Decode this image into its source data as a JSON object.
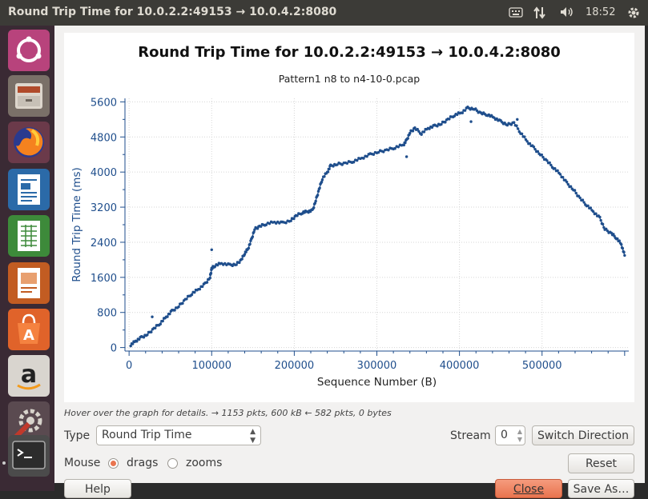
{
  "window": {
    "title": "Round Trip Time for 10.0.2.2:49153 → 10.0.4.2:8080"
  },
  "topbar": {
    "clock": "18:52",
    "icons": [
      "keyboard-icon",
      "network-icon",
      "volume-icon",
      "system-gear-icon"
    ]
  },
  "launcher": {
    "items": [
      "ubuntu-icon",
      "files-icon",
      "firefox-icon",
      "writer-icon",
      "calc-icon",
      "impress-icon",
      "software-icon",
      "amazon-icon",
      "settings-icon",
      "terminal-icon"
    ]
  },
  "hint": "Hover over the graph for details. → 1153 pkts, 600 kB ← 582 pkts, 0 bytes",
  "controls": {
    "type_label": "Type",
    "type_value": "Round Trip Time",
    "stream_label": "Stream",
    "stream_value": "0",
    "switch_direction": "Switch Direction",
    "mouse_label": "Mouse",
    "mouse_drags": "drags",
    "mouse_zooms": "zooms",
    "mouse_selected": "drags",
    "reset": "Reset",
    "help": "Help",
    "close": "Close",
    "save_as": "Save As…"
  },
  "chart_data": {
    "type": "scatter",
    "title": "Round Trip Time for 10.0.2.2:49153 → 10.0.4.2:8080",
    "subtitle": "Pattern1 n8 to n4-10-0.pcap",
    "xlabel": "Sequence Number (B)",
    "ylabel": "Round Trip Time (ms)",
    "xlim": [
      -5000,
      605000
    ],
    "ylim": [
      -80,
      5680
    ],
    "x_ticks": [
      0,
      100000,
      200000,
      300000,
      400000,
      500000
    ],
    "y_ticks": [
      0,
      800,
      1600,
      2400,
      3200,
      4000,
      4800,
      5600
    ],
    "grid": true,
    "color": "#1f4e8c",
    "series": [
      {
        "points": [
          [
            2000,
            60
          ],
          [
            8000,
            150
          ],
          [
            15000,
            230
          ],
          [
            22000,
            300
          ],
          [
            30000,
            430
          ],
          [
            38000,
            560
          ],
          [
            45000,
            700
          ],
          [
            52000,
            830
          ],
          [
            60000,
            940
          ],
          [
            68000,
            1090
          ],
          [
            76000,
            1230
          ],
          [
            84000,
            1330
          ],
          [
            92000,
            1450
          ],
          [
            98000,
            1600
          ],
          [
            100000,
            1800
          ],
          [
            104000,
            1870
          ],
          [
            112000,
            1920
          ],
          [
            122000,
            1880
          ],
          [
            130000,
            1900
          ],
          [
            136000,
            2000
          ],
          [
            140000,
            2150
          ],
          [
            144000,
            2250
          ],
          [
            148000,
            2450
          ],
          [
            152000,
            2700
          ],
          [
            158000,
            2760
          ],
          [
            166000,
            2820
          ],
          [
            176000,
            2860
          ],
          [
            186000,
            2840
          ],
          [
            196000,
            2900
          ],
          [
            202000,
            3000
          ],
          [
            210000,
            3080
          ],
          [
            216000,
            3100
          ],
          [
            222000,
            3120
          ],
          [
            226000,
            3350
          ],
          [
            230000,
            3600
          ],
          [
            234000,
            3850
          ],
          [
            240000,
            4000
          ],
          [
            244000,
            4140
          ],
          [
            252000,
            4180
          ],
          [
            262000,
            4200
          ],
          [
            272000,
            4250
          ],
          [
            282000,
            4320
          ],
          [
            292000,
            4400
          ],
          [
            302000,
            4460
          ],
          [
            312000,
            4500
          ],
          [
            322000,
            4560
          ],
          [
            332000,
            4620
          ],
          [
            336000,
            4720
          ],
          [
            340000,
            4900
          ],
          [
            346000,
            5000
          ],
          [
            354000,
            4880
          ],
          [
            362000,
            5000
          ],
          [
            370000,
            5050
          ],
          [
            378000,
            5100
          ],
          [
            386000,
            5200
          ],
          [
            394000,
            5300
          ],
          [
            402000,
            5350
          ],
          [
            410000,
            5460
          ],
          [
            418000,
            5440
          ],
          [
            426000,
            5340
          ],
          [
            434000,
            5310
          ],
          [
            442000,
            5240
          ],
          [
            450000,
            5150
          ],
          [
            458000,
            5080
          ],
          [
            466000,
            5120
          ],
          [
            474000,
            4900
          ],
          [
            482000,
            4700
          ],
          [
            490000,
            4550
          ],
          [
            498000,
            4400
          ],
          [
            506000,
            4250
          ],
          [
            514000,
            4100
          ],
          [
            522000,
            3950
          ],
          [
            530000,
            3750
          ],
          [
            538000,
            3600
          ],
          [
            546000,
            3400
          ],
          [
            554000,
            3250
          ],
          [
            562000,
            3100
          ],
          [
            570000,
            2950
          ],
          [
            576000,
            2700
          ],
          [
            584000,
            2600
          ],
          [
            590000,
            2500
          ],
          [
            596000,
            2350
          ],
          [
            600000,
            2100
          ]
        ],
        "outliers": [
          [
            100000,
            2230
          ],
          [
            28000,
            700
          ],
          [
            336000,
            4350
          ],
          [
            414000,
            5150
          ],
          [
            470000,
            5200
          ]
        ]
      }
    ]
  }
}
